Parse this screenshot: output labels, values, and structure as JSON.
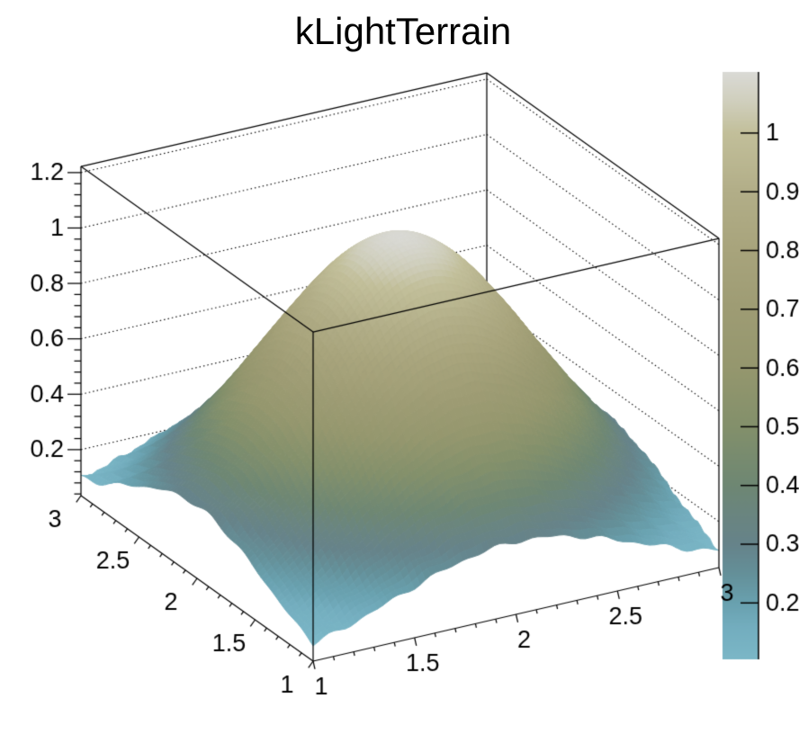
{
  "title": "kLightTerrain",
  "page": {
    "background": "#ffffff",
    "foreground": "#000000"
  },
  "chart_data": {
    "type": "surface",
    "subtype": "3d-surface-plot",
    "title": "kLightTerrain",
    "x": {
      "label": "",
      "range": [
        1,
        3
      ],
      "ticks": [
        1,
        1.5,
        2,
        2.5,
        3
      ],
      "tick_labels": [
        "1",
        "1.5",
        "2",
        "2.5",
        "3"
      ],
      "minor_step": 0.1
    },
    "y": {
      "label": "",
      "range": [
        1,
        3
      ],
      "ticks": [
        1,
        1.5,
        2,
        2.5,
        3
      ],
      "tick_labels": [
        "1",
        "1.5",
        "2",
        "2.5",
        "3"
      ],
      "minor_step": 0.1
    },
    "z": {
      "label": "",
      "range": [
        0.034,
        1.222
      ],
      "ticks": [
        0.2,
        0.4,
        0.6,
        0.8,
        1.0,
        1.2
      ],
      "tick_labels": [
        "0.2",
        "0.4",
        "0.6",
        "0.8",
        "1",
        "1.2"
      ],
      "minor_step": 0.04
    },
    "grid": {
      "style": "dotted",
      "z_values": [
        0.2,
        0.4,
        0.6,
        0.8,
        1.0,
        1.2
      ]
    },
    "surface": {
      "model": "gaussian-bump",
      "center": [
        2,
        2
      ],
      "sigma": 0.6,
      "peak": 1.1,
      "base": 0.03,
      "edge_noise": 0.012
    },
    "palette": {
      "name": "kLightTerrain",
      "min": 0.104,
      "max": 1.104,
      "stops": [
        {
          "v": 0.104,
          "c": "#7bb7c7"
        },
        {
          "v": 0.16,
          "c": "#73adbe"
        },
        {
          "v": 0.2,
          "c": "#69a1af"
        },
        {
          "v": 0.25,
          "c": "#649099"
        },
        {
          "v": 0.3,
          "c": "#66838a"
        },
        {
          "v": 0.35,
          "c": "#6a8580"
        },
        {
          "v": 0.4,
          "c": "#6e8773"
        },
        {
          "v": 0.5,
          "c": "#83906b"
        },
        {
          "v": 0.6,
          "c": "#95976e"
        },
        {
          "v": 0.7,
          "c": "#9e9c74"
        },
        {
          "v": 0.8,
          "c": "#a8a47c"
        },
        {
          "v": 0.9,
          "c": "#b2ae88"
        },
        {
          "v": 1.0,
          "c": "#c2bf9a"
        },
        {
          "v": 1.05,
          "c": "#cfcebb"
        },
        {
          "v": 1.104,
          "c": "#dadad6"
        }
      ]
    },
    "colorbar": {
      "ticks": [
        0.2,
        0.3,
        0.4,
        0.5,
        0.6,
        0.7,
        0.8,
        0.9,
        1.0
      ],
      "tick_labels": [
        "0.2",
        "0.3",
        "0.4",
        "0.5",
        "0.6",
        "0.7",
        "0.8",
        "0.9",
        "1"
      ]
    }
  }
}
